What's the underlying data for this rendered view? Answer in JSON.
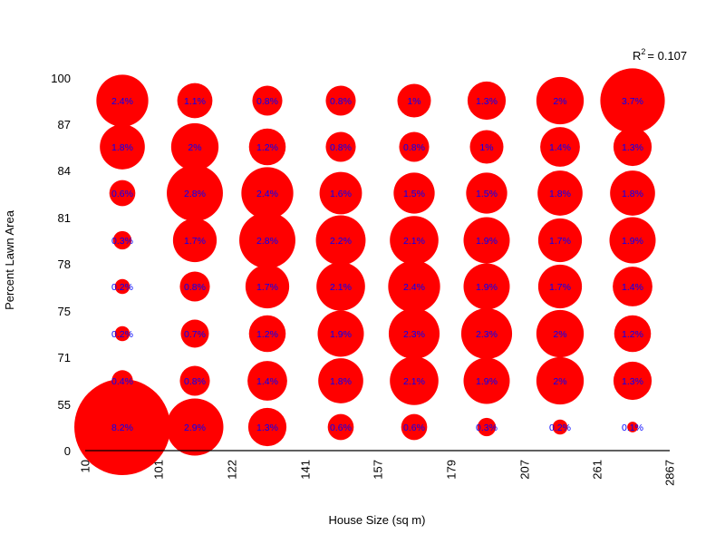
{
  "chart_data": {
    "type": "bubble-grid",
    "title": "",
    "xlabel": "House Size (sq m)",
    "ylabel": "Percent Lawn Area",
    "x_breaks": [
      "10",
      "101",
      "122",
      "141",
      "157",
      "179",
      "207",
      "261",
      "2867"
    ],
    "y_breaks": [
      "0",
      "55",
      "71",
      "75",
      "78",
      "81",
      "84",
      "87",
      "100"
    ],
    "annotation": {
      "r2_label": "R",
      "r2_sup": "2",
      "r2_value": "= 0.107"
    },
    "bubble_color": "#ff0000",
    "label_color": "#0000ff",
    "rows": [
      {
        "y_bin": "87-100",
        "labels": [
          "2.4%",
          "1.1%",
          "0.8%",
          "0.8%",
          "1%",
          "1.3%",
          "2%",
          "3.7%"
        ],
        "values": [
          2.4,
          1.1,
          0.8,
          0.8,
          1.0,
          1.3,
          2.0,
          3.7
        ]
      },
      {
        "y_bin": "84-87",
        "labels": [
          "1.8%",
          "2%",
          "1.2%",
          "0.8%",
          "0.8%",
          "1%",
          "1.4%",
          "1.3%"
        ],
        "values": [
          1.8,
          2.0,
          1.2,
          0.8,
          0.8,
          1.0,
          1.4,
          1.3
        ]
      },
      {
        "y_bin": "81-84",
        "labels": [
          "0.6%",
          "2.8%",
          "2.4%",
          "1.6%",
          "1.5%",
          "1.5%",
          "1.8%",
          "1.8%"
        ],
        "values": [
          0.6,
          2.8,
          2.4,
          1.6,
          1.5,
          1.5,
          1.8,
          1.8
        ]
      },
      {
        "y_bin": "78-81",
        "labels": [
          "0.3%",
          "1.7%",
          "2.8%",
          "2.2%",
          "2.1%",
          "1.9%",
          "1.7%",
          "1.9%"
        ],
        "values": [
          0.3,
          1.7,
          2.8,
          2.2,
          2.1,
          1.9,
          1.7,
          1.9
        ]
      },
      {
        "y_bin": "75-78",
        "labels": [
          "0.2%",
          "0.8%",
          "1.7%",
          "2.1%",
          "2.4%",
          "1.9%",
          "1.7%",
          "1.4%"
        ],
        "values": [
          0.2,
          0.8,
          1.7,
          2.1,
          2.4,
          1.9,
          1.7,
          1.4
        ]
      },
      {
        "y_bin": "71-75",
        "labels": [
          "0.2%",
          "0.7%",
          "1.2%",
          "1.9%",
          "2.3%",
          "2.3%",
          "2%",
          "1.2%"
        ],
        "values": [
          0.2,
          0.7,
          1.2,
          1.9,
          2.3,
          2.3,
          2.0,
          1.2
        ]
      },
      {
        "y_bin": "55-71",
        "labels": [
          "0.4%",
          "0.8%",
          "1.4%",
          "1.8%",
          "2.1%",
          "1.9%",
          "2%",
          "1.3%"
        ],
        "values": [
          0.4,
          0.8,
          1.4,
          1.8,
          2.1,
          1.9,
          2.0,
          1.3
        ]
      },
      {
        "y_bin": "0-55",
        "labels": [
          "8.2%",
          "2.9%",
          "1.3%",
          "0.6%",
          "0.6%",
          "0.3%",
          "0.2%",
          "0.1%"
        ],
        "values": [
          8.2,
          2.9,
          1.3,
          0.6,
          0.6,
          0.3,
          0.2,
          0.1
        ]
      }
    ]
  }
}
